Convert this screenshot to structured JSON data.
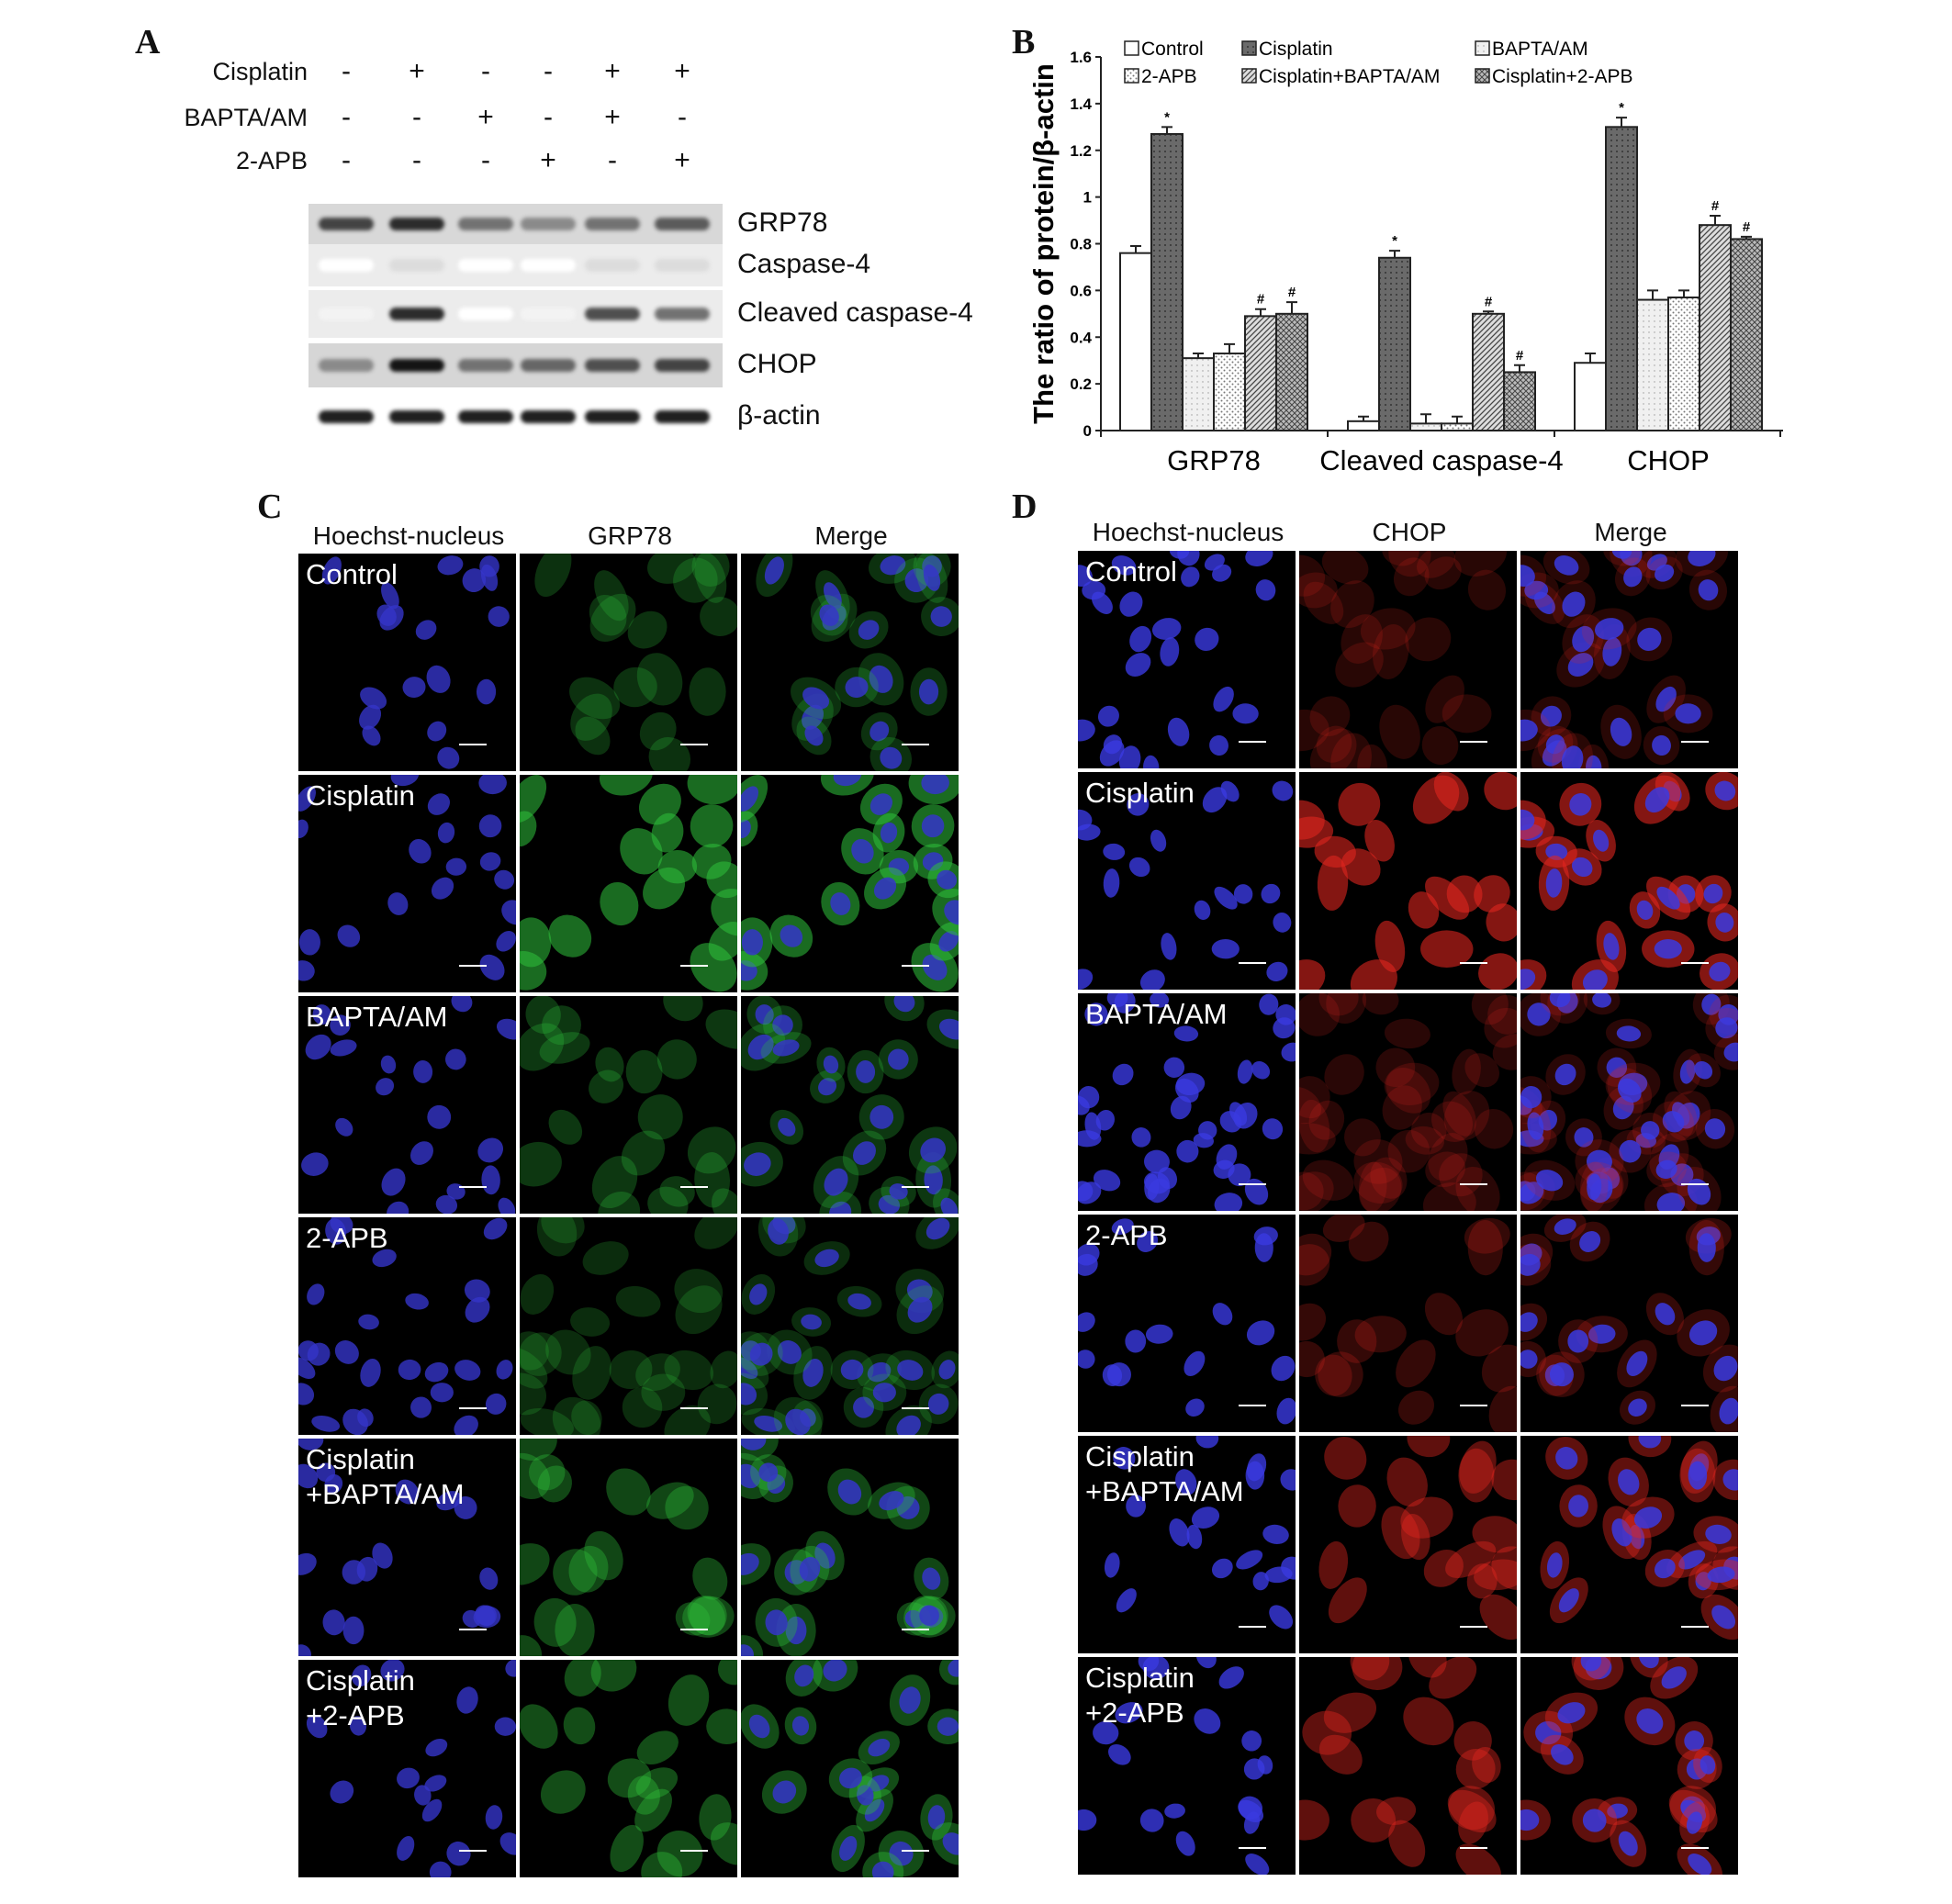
{
  "panel_a": {
    "label": "A",
    "treatments": [
      {
        "name": "Cisplatin",
        "signs": [
          "-",
          "+",
          "-",
          "-",
          "+",
          "+"
        ]
      },
      {
        "name": "BAPTA/AM",
        "signs": [
          "-",
          "-",
          "+",
          "-",
          "+",
          "-"
        ]
      },
      {
        "name": "2-APB",
        "signs": [
          "-",
          "-",
          "-",
          "+",
          "-",
          "+"
        ]
      }
    ],
    "blots": [
      {
        "name": "GRP78",
        "band_intensity": [
          0.8,
          0.9,
          0.6,
          0.5,
          0.6,
          0.7
        ]
      },
      {
        "name": "Caspase-4",
        "band_intensity": [
          0,
          0.15,
          0,
          0,
          0.15,
          0.15
        ]
      },
      {
        "name": "Cleaved caspase-4",
        "band_intensity": [
          0.05,
          0.9,
          0,
          0.05,
          0.75,
          0.6
        ]
      },
      {
        "name": "CHOP",
        "band_intensity": [
          0.5,
          1.0,
          0.6,
          0.65,
          0.75,
          0.8
        ]
      },
      {
        "name": "β-actin",
        "band_intensity": [
          0.95,
          0.95,
          0.95,
          0.95,
          0.95,
          0.95
        ]
      }
    ]
  },
  "panel_b": {
    "label": "B"
  },
  "chart_data": {
    "type": "bar",
    "ylabel": "The ratio of protein/β-actin",
    "xlabel": "",
    "ylim": [
      0,
      1.6
    ],
    "yticks": [
      "0",
      "0.2",
      "0.4",
      "0.6",
      "0.8",
      "1",
      "1.2",
      "1.4",
      "1.6"
    ],
    "categories": [
      "GRP78",
      "Cleaved caspase-4",
      "CHOP"
    ],
    "legend_position": "top",
    "series": [
      {
        "name": "Control",
        "values": [
          0.76,
          0.04,
          0.29
        ],
        "errors": [
          0.03,
          0.02,
          0.04
        ],
        "marks": [
          "",
          "",
          ""
        ],
        "fill": "white"
      },
      {
        "name": "Cisplatin",
        "values": [
          1.27,
          0.74,
          1.3
        ],
        "errors": [
          0.03,
          0.03,
          0.04
        ],
        "marks": [
          "*",
          "*",
          "*"
        ],
        "fill": "dark"
      },
      {
        "name": "BAPTA/AM",
        "values": [
          0.31,
          0.03,
          0.56
        ],
        "errors": [
          0.02,
          0.04,
          0.04
        ],
        "marks": [
          "",
          "",
          ""
        ],
        "fill": "light"
      },
      {
        "name": "2-APB",
        "values": [
          0.33,
          0.03,
          0.57
        ],
        "errors": [
          0.04,
          0.03,
          0.03
        ],
        "marks": [
          "",
          "",
          ""
        ],
        "fill": "dots"
      },
      {
        "name": "Cisplatin+BAPTA/AM",
        "values": [
          0.49,
          0.5,
          0.88
        ],
        "errors": [
          0.03,
          0.01,
          0.04
        ],
        "marks": [
          "#",
          "#",
          "#"
        ],
        "fill": "hatch"
      },
      {
        "name": "Cisplatin+2-APB",
        "values": [
          0.5,
          0.25,
          0.82
        ],
        "errors": [
          0.05,
          0.03,
          0.01
        ],
        "marks": [
          "#",
          "#",
          "#"
        ],
        "fill": "cross"
      }
    ]
  },
  "panel_c": {
    "label": "C",
    "columns": [
      "Hoechst-nucleus",
      "GRP78",
      "Merge"
    ],
    "rows": [
      "Control",
      "Cisplatin",
      "BAPTA/AM",
      "2-APB",
      "Cisplatin\n+BAPTA/AM",
      "Cisplatin\n+2-APB"
    ],
    "nucleus_color": "#3535c8",
    "signal_color": "#2fbf3a",
    "signal_level": [
      0.25,
      0.8,
      0.3,
      0.2,
      0.45,
      0.5
    ]
  },
  "panel_d": {
    "label": "D",
    "columns": [
      "Hoechst-nucleus",
      "CHOP",
      "Merge"
    ],
    "rows": [
      "Control",
      "Cisplatin",
      "BAPTA/AM",
      "2-APB",
      "Cisplatin\n+BAPTA/AM",
      "Cisplatin\n+2-APB"
    ],
    "nucleus_color": "#3a3ae0",
    "signal_color": "#e0261e",
    "signal_level": [
      0.1,
      0.85,
      0.12,
      0.2,
      0.55,
      0.55
    ]
  }
}
